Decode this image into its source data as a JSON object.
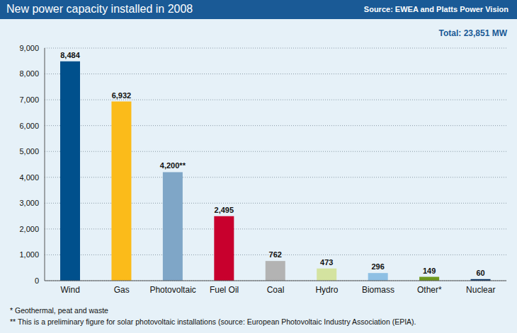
{
  "chart_data": {
    "type": "bar",
    "title": "New power capacity installed in 2008",
    "annotations": [
      "Source: EWEA and Platts Power Vision",
      "Total: 23,851 MW",
      "*  Geothermal, peat and waste",
      "** This is a preliminary figure for solar photovoltaic installations (source: European Photovoltaic Industry Association (EPIA)."
    ],
    "categories": [
      "Wind",
      "Gas",
      "Photovoltaic",
      "Fuel Oil",
      "Coal",
      "Hydro",
      "Biomass",
      "Other*",
      "Nuclear"
    ],
    "values": [
      8484,
      6932,
      4200,
      2495,
      762,
      473,
      296,
      149,
      60
    ],
    "value_labels": [
      "8,484",
      "6,932",
      "4,200**",
      "2,495",
      "762",
      "473",
      "296",
      "149",
      "60"
    ],
    "colors": [
      "#00508c",
      "#fbbb1a",
      "#7fa6c7",
      "#c8002d",
      "#b3b3b3",
      "#d4e3a0",
      "#8ec0e4",
      "#6f9a1e",
      "#0a3566"
    ],
    "ylim": [
      0,
      9000
    ],
    "yticks": [
      0,
      {
        "value": 1000,
        "label": "1,000"
      },
      {
        "value": 2000,
        "label": "2,000"
      },
      {
        "value": 3000,
        "label": "3,000"
      },
      {
        "value": 4000,
        "label": "4,000"
      },
      {
        "value": 5000,
        "label": "5,000"
      },
      {
        "value": 6000,
        "label": "6,000"
      },
      {
        "value": 7000,
        "label": "7,000"
      },
      {
        "value": 8000,
        "label": "8,000"
      },
      {
        "value": 9000,
        "label": "9,000"
      }
    ],
    "grid": true,
    "data_labels": true
  }
}
